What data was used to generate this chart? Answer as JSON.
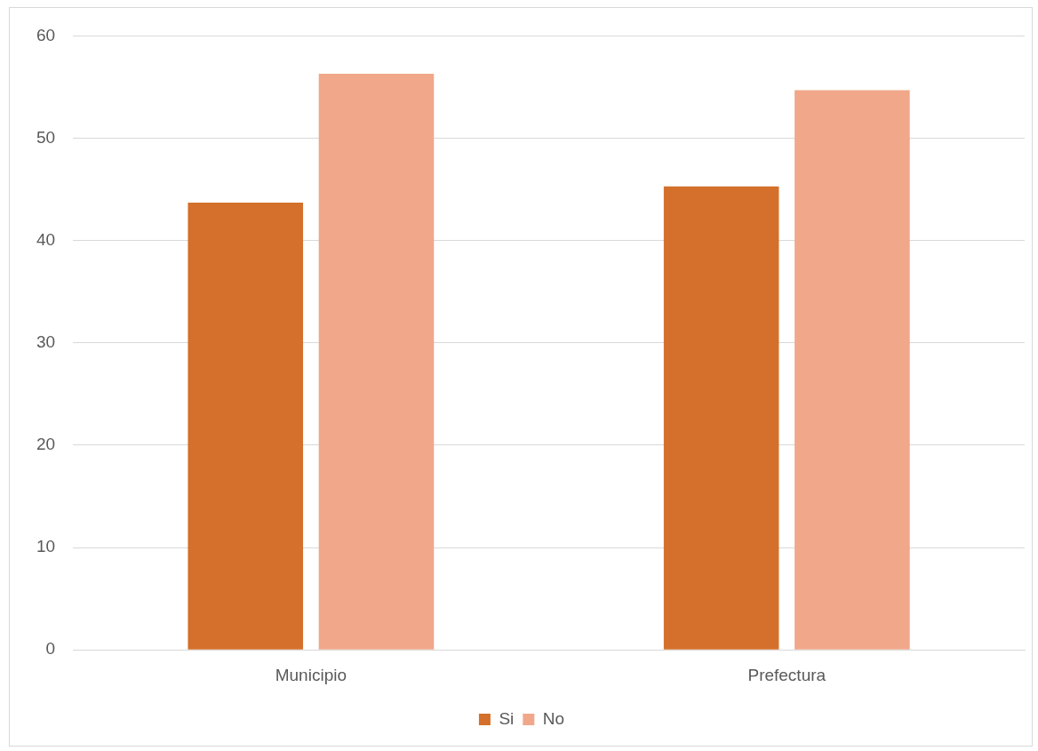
{
  "chart_data": {
    "type": "bar",
    "categories": [
      "Municipio",
      "Prefectura"
    ],
    "series": [
      {
        "name": "Si",
        "color": "#d4702b",
        "values": [
          43.7,
          45.3
        ]
      },
      {
        "name": "No",
        "color": "#f1a78a",
        "values": [
          56.3,
          54.7
        ]
      }
    ],
    "ylim": [
      0,
      60
    ],
    "yticks": [
      0,
      10,
      20,
      30,
      40,
      50,
      60
    ],
    "grid": "y",
    "legend": "bottom"
  }
}
